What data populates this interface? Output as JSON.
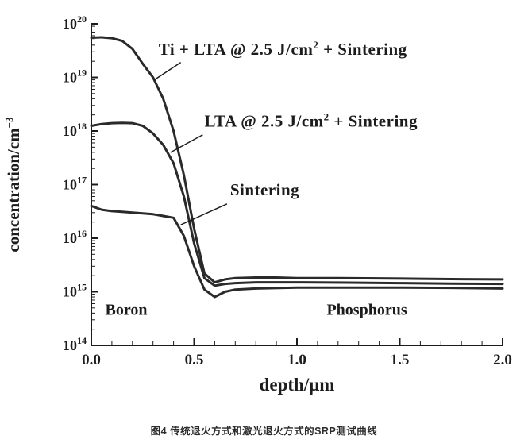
{
  "caption": {
    "text": "图4 传统退火方式和激光退火方式的SRP测试曲线"
  },
  "chart_data": {
    "type": "line",
    "title": "",
    "ink_color": "#1c1c1c",
    "curve_color": "#2a2a2a",
    "x_axis": {
      "label": "depth/μm",
      "min": 0,
      "max": 2,
      "major_ticks": [
        0,
        0.5,
        1.0,
        1.5,
        2.0
      ],
      "tick_labels": [
        "0.0",
        "0.5",
        "1.0",
        "1.5",
        "2.0"
      ],
      "minor_step": 0.1
    },
    "y_axis": {
      "label": "concentration/cm⁻³",
      "label_parts": [
        {
          "text": "concentration/cm"
        },
        {
          "text": "−3",
          "super": true
        }
      ],
      "scale": "log",
      "min_exp": 14,
      "max_exp": 20,
      "tick_exponents": [
        14,
        15,
        16,
        17,
        18,
        19,
        20
      ]
    },
    "series": [
      {
        "name": "Ti + LTA @ 2.5 J/cm² + Sintering",
        "label_parts": [
          {
            "text": "Ti + LTA @ 2.5 J/cm"
          },
          {
            "text": "2",
            "super": true
          },
          {
            "text": " + Sintering"
          }
        ],
        "points": [
          [
            0.0,
            5.5e+19
          ],
          [
            0.05,
            5.6e+19
          ],
          [
            0.1,
            5.4e+19
          ],
          [
            0.15,
            4.8e+19
          ],
          [
            0.2,
            3.4e+19
          ],
          [
            0.25,
            1.8e+19
          ],
          [
            0.3,
            1e+19
          ],
          [
            0.35,
            4e+18
          ],
          [
            0.4,
            1e+18
          ],
          [
            0.45,
            1.5e+17
          ],
          [
            0.5,
            1.5e+16
          ],
          [
            0.55,
            2200000000000000.0
          ],
          [
            0.6,
            1500000000000000.0
          ],
          [
            0.65,
            1700000000000000.0
          ],
          [
            0.7,
            1800000000000000.0
          ],
          [
            0.8,
            1850000000000000.0
          ],
          [
            0.9,
            1850000000000000.0
          ],
          [
            1.0,
            1800000000000000.0
          ],
          [
            1.2,
            1800000000000000.0
          ],
          [
            1.4,
            1780000000000000.0
          ],
          [
            1.6,
            1750000000000000.0
          ],
          [
            1.8,
            1720000000000000.0
          ],
          [
            2.0,
            1700000000000000.0
          ]
        ]
      },
      {
        "name": "LTA @ 2.5 J/cm² + Sintering",
        "label_parts": [
          {
            "text": "LTA @ 2.5 J/cm"
          },
          {
            "text": "2",
            "super": true
          },
          {
            "text": " + Sintering"
          }
        ],
        "points": [
          [
            0.0,
            1.25e+18
          ],
          [
            0.05,
            1.35e+18
          ],
          [
            0.1,
            1.4e+18
          ],
          [
            0.15,
            1.42e+18
          ],
          [
            0.2,
            1.4e+18
          ],
          [
            0.25,
            1.25e+18
          ],
          [
            0.3,
            9e+17
          ],
          [
            0.35,
            5.5e+17
          ],
          [
            0.4,
            2.5e+17
          ],
          [
            0.45,
            6e+16
          ],
          [
            0.5,
            8000000000000000.0
          ],
          [
            0.55,
            1800000000000000.0
          ],
          [
            0.6,
            1300000000000000.0
          ],
          [
            0.65,
            1400000000000000.0
          ],
          [
            0.7,
            1450000000000000.0
          ],
          [
            0.8,
            1500000000000000.0
          ],
          [
            1.0,
            1500000000000000.0
          ],
          [
            1.25,
            1480000000000000.0
          ],
          [
            1.5,
            1450000000000000.0
          ],
          [
            1.75,
            1420000000000000.0
          ],
          [
            2.0,
            1400000000000000.0
          ]
        ]
      },
      {
        "name": "Sintering",
        "label_parts": [
          {
            "text": "Sintering"
          }
        ],
        "points": [
          [
            0.0,
            4e+16
          ],
          [
            0.05,
            3.4e+16
          ],
          [
            0.1,
            3.2e+16
          ],
          [
            0.15,
            3.1e+16
          ],
          [
            0.2,
            3e+16
          ],
          [
            0.25,
            2.9e+16
          ],
          [
            0.3,
            2.8e+16
          ],
          [
            0.35,
            2.6e+16
          ],
          [
            0.4,
            2.4e+16
          ],
          [
            0.45,
            1.1e+16
          ],
          [
            0.5,
            3000000000000000.0
          ],
          [
            0.55,
            1100000000000000.0
          ],
          [
            0.6,
            800000000000000.0
          ],
          [
            0.65,
            1000000000000000.0
          ],
          [
            0.7,
            1100000000000000.0
          ],
          [
            0.8,
            1150000000000000.0
          ],
          [
            1.0,
            1200000000000000.0
          ],
          [
            1.25,
            1200000000000000.0
          ],
          [
            1.5,
            1200000000000000.0
          ],
          [
            1.75,
            1180000000000000.0
          ],
          [
            2.0,
            1150000000000000.0
          ]
        ]
      }
    ],
    "annotations": [
      {
        "series": 0,
        "text_x": 0.327,
        "text_y_exp": 19.42,
        "leader": [
          0.435,
          19.28,
          0.305,
          18.95
        ]
      },
      {
        "series": 1,
        "text_x": 0.55,
        "text_y_exp": 18.08,
        "leader": [
          0.542,
          17.93,
          0.385,
          17.6
        ]
      },
      {
        "series": 2,
        "text_x": 0.675,
        "text_y_exp": 16.8,
        "leader": [
          0.66,
          16.64,
          0.435,
          16.25
        ]
      }
    ],
    "region_labels": [
      {
        "text": "Boron",
        "x": 0.17,
        "y_exp": 14.57
      },
      {
        "text": "Phosphorus",
        "x": 1.34,
        "y_exp": 14.57
      }
    ]
  }
}
